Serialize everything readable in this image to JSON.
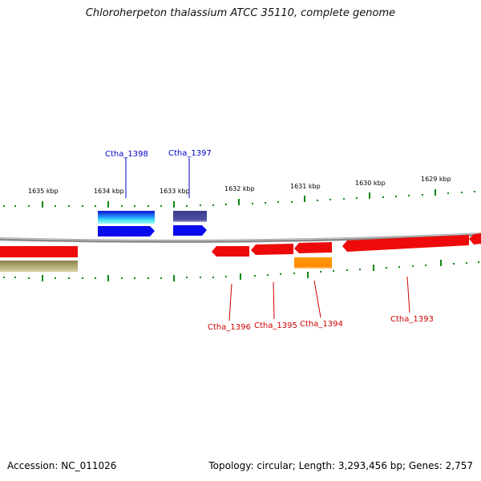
{
  "title": "Chloroherpeton thalassium ATCC 35110, complete genome",
  "footer": {
    "accession": "Accession: NC_011026",
    "summary": "Topology: circular; Length: 3,293,456 bp; Genes: 2,757"
  },
  "kbp_labels": [
    "1635 kbp",
    "1634 kbp",
    "1633 kbp",
    "1632 kbp",
    "1631 kbp",
    "1630 kbp",
    "1629 kbp"
  ],
  "gene_labels": [
    "Ctha_1398",
    "Ctha_1397",
    "Ctha_1396",
    "Ctha_1395",
    "Ctha_1394",
    "Ctha_1393"
  ],
  "colors": {
    "forward_gene": "#0000ee",
    "reverse_gene": "#ee0000",
    "forward_label": "#0000cc",
    "reverse_label": "#cc0000",
    "tick": "#118811",
    "backbone": "#888888"
  }
}
